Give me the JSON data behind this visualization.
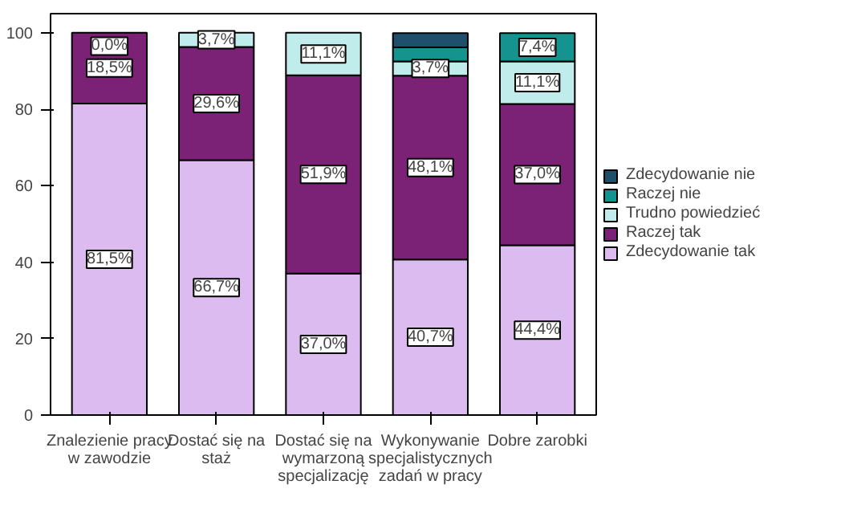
{
  "chart_data": {
    "type": "bar",
    "stacked": true,
    "categories": [
      "Znalezienie pracy w zawodzie",
      "Dostać się na staż",
      "Dostać się na wymarzoną specjalizację",
      "Wykonywanie specjalistycznych zadań w pracy",
      "Dobre zarobki"
    ],
    "series": [
      {
        "name": "Zdecydowanie tak",
        "color": "#dcbcf0",
        "values": [
          81.5,
          66.7,
          37.0,
          40.7,
          44.4
        ],
        "value_labels": [
          "81,5%",
          "66,7%",
          "37,0%",
          "40,7%",
          "44,4%"
        ]
      },
      {
        "name": "Raczej tak",
        "color": "#7b2277",
        "values": [
          18.5,
          29.6,
          51.9,
          48.1,
          37.0
        ],
        "value_labels": [
          "18,5%",
          "29,6%",
          "51,9%",
          "48,1%",
          "37,0%"
        ]
      },
      {
        "name": "Trudno powiedzieć",
        "color": "#c0ecec",
        "values": [
          0.0,
          3.7,
          11.1,
          3.7,
          11.1
        ],
        "value_labels": [
          "0,0%",
          "3,7%",
          "11,1%",
          "3,7%",
          "11,1%"
        ]
      },
      {
        "name": "Raczej nie",
        "color": "#15948f",
        "values": [
          0,
          0,
          0,
          3.7,
          7.4
        ],
        "value_labels": [
          null,
          null,
          null,
          null,
          "7,4%"
        ]
      },
      {
        "name": "Zdecydowanie nie",
        "color": "#1f4f6a",
        "values": [
          0,
          0,
          0,
          3.7,
          0
        ],
        "value_labels": [
          null,
          null,
          null,
          null,
          null
        ]
      }
    ],
    "ylim": [
      0,
      105
    ],
    "yticks": [
      0,
      20,
      40,
      60,
      80,
      100
    ],
    "grid": false,
    "legend": "right"
  }
}
